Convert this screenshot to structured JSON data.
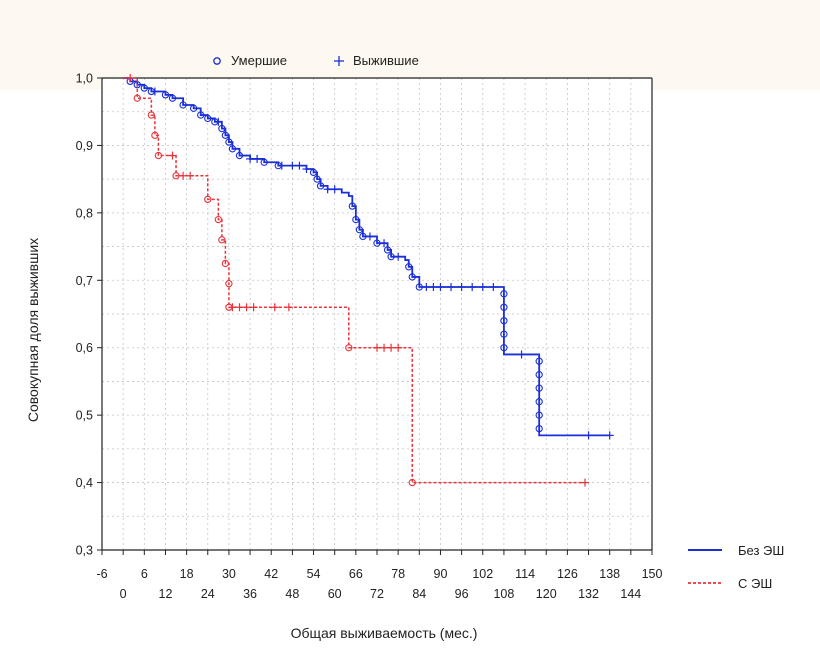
{
  "chart_data": {
    "type": "line",
    "title": "",
    "xlabel": "Общая выживаемость (мес.)",
    "ylabel": "Совокупная доля выживших",
    "xlim": [
      -6,
      150
    ],
    "ylim": [
      0.3,
      1.0
    ],
    "x_ticks_top_row": [
      "-6",
      "6",
      "18",
      "30",
      "42",
      "54",
      "66",
      "78",
      "90",
      "102",
      "114",
      "126",
      "138",
      "150"
    ],
    "x_ticks_bottom_row": [
      "0",
      "12",
      "24",
      "36",
      "48",
      "60",
      "72",
      "84",
      "96",
      "108",
      "120",
      "132",
      "144"
    ],
    "y_ticks": [
      "0,3",
      "0,4",
      "0,5",
      "0,6",
      "0,7",
      "0,8",
      "0,9",
      "1,0"
    ],
    "y_tick_values": [
      0.3,
      0.4,
      0.5,
      0.6,
      0.7,
      0.8,
      0.9,
      1.0
    ],
    "grid": true,
    "marker_legend": {
      "placement": "top",
      "items": [
        {
          "symbol": "circle",
          "label": "Умершие"
        },
        {
          "symbol": "plus",
          "label": "Выжившие"
        }
      ]
    },
    "series_legend": {
      "placement": "bottom-right",
      "items": [
        {
          "label": "Без ЭШ",
          "style": "solid",
          "color": "#1a2fd6"
        },
        {
          "label": "С ЭШ",
          "style": "dashed",
          "color": "#e8333a"
        }
      ]
    },
    "series": [
      {
        "name": "Без ЭШ",
        "color": "#1a2fd6",
        "style": "solid",
        "steps": [
          [
            0,
            1.0
          ],
          [
            2,
            0.995
          ],
          [
            4,
            0.99
          ],
          [
            6,
            0.985
          ],
          [
            8,
            0.98
          ],
          [
            12,
            0.975
          ],
          [
            14,
            0.97
          ],
          [
            17,
            0.96
          ],
          [
            20,
            0.955
          ],
          [
            22,
            0.945
          ],
          [
            24,
            0.94
          ],
          [
            26,
            0.935
          ],
          [
            28,
            0.925
          ],
          [
            29,
            0.915
          ],
          [
            30,
            0.905
          ],
          [
            31,
            0.895
          ],
          [
            33,
            0.885
          ],
          [
            36,
            0.88
          ],
          [
            40,
            0.875
          ],
          [
            44,
            0.87
          ],
          [
            52,
            0.865
          ],
          [
            54,
            0.86
          ],
          [
            55,
            0.85
          ],
          [
            56,
            0.84
          ],
          [
            58,
            0.835
          ],
          [
            62,
            0.83
          ],
          [
            64,
            0.825
          ],
          [
            65,
            0.81
          ],
          [
            66,
            0.79
          ],
          [
            67,
            0.775
          ],
          [
            68,
            0.765
          ],
          [
            72,
            0.755
          ],
          [
            75,
            0.745
          ],
          [
            76,
            0.735
          ],
          [
            80,
            0.73
          ],
          [
            81,
            0.72
          ],
          [
            82,
            0.705
          ],
          [
            84,
            0.69
          ],
          [
            108,
            0.59
          ],
          [
            118,
            0.47
          ],
          [
            138,
            0.47
          ]
        ],
        "deaths": [
          [
            2,
            0.995
          ],
          [
            4,
            0.99
          ],
          [
            6,
            0.985
          ],
          [
            8,
            0.98
          ],
          [
            12,
            0.975
          ],
          [
            14,
            0.97
          ],
          [
            17,
            0.96
          ],
          [
            20,
            0.955
          ],
          [
            22,
            0.945
          ],
          [
            24,
            0.94
          ],
          [
            26,
            0.935
          ],
          [
            28,
            0.925
          ],
          [
            29,
            0.915
          ],
          [
            30,
            0.905
          ],
          [
            31,
            0.895
          ],
          [
            33,
            0.885
          ],
          [
            40,
            0.875
          ],
          [
            44,
            0.87
          ],
          [
            54,
            0.86
          ],
          [
            55,
            0.85
          ],
          [
            56,
            0.84
          ],
          [
            65,
            0.81
          ],
          [
            66,
            0.79
          ],
          [
            67,
            0.775
          ],
          [
            68,
            0.765
          ],
          [
            72,
            0.755
          ],
          [
            75,
            0.745
          ],
          [
            76,
            0.735
          ],
          [
            81,
            0.72
          ],
          [
            82,
            0.705
          ],
          [
            84,
            0.69
          ],
          [
            108,
            0.68
          ],
          [
            108,
            0.66
          ],
          [
            108,
            0.64
          ],
          [
            108,
            0.62
          ],
          [
            108,
            0.6
          ],
          [
            118,
            0.58
          ],
          [
            118,
            0.56
          ],
          [
            118,
            0.54
          ],
          [
            118,
            0.52
          ],
          [
            118,
            0.5
          ],
          [
            118,
            0.48
          ]
        ],
        "censored": [
          [
            9,
            0.98
          ],
          [
            27,
            0.935
          ],
          [
            36,
            0.88
          ],
          [
            38,
            0.88
          ],
          [
            45,
            0.87
          ],
          [
            48,
            0.87
          ],
          [
            50,
            0.87
          ],
          [
            52,
            0.865
          ],
          [
            58,
            0.835
          ],
          [
            60,
            0.835
          ],
          [
            70,
            0.765
          ],
          [
            74,
            0.755
          ],
          [
            78,
            0.735
          ],
          [
            86,
            0.69
          ],
          [
            88,
            0.69
          ],
          [
            90,
            0.69
          ],
          [
            93,
            0.69
          ],
          [
            96,
            0.69
          ],
          [
            99,
            0.69
          ],
          [
            102,
            0.69
          ],
          [
            105,
            0.69
          ],
          [
            113,
            0.59
          ],
          [
            132,
            0.47
          ],
          [
            138,
            0.47
          ]
        ]
      },
      {
        "name": "С ЭШ",
        "color": "#e8333a",
        "style": "dashed",
        "steps": [
          [
            0,
            1.0
          ],
          [
            4,
            0.97
          ],
          [
            8,
            0.945
          ],
          [
            9,
            0.915
          ],
          [
            10,
            0.885
          ],
          [
            15,
            0.855
          ],
          [
            24,
            0.82
          ],
          [
            27,
            0.79
          ],
          [
            28,
            0.76
          ],
          [
            29,
            0.725
          ],
          [
            30,
            0.66
          ],
          [
            64,
            0.6
          ],
          [
            82,
            0.4
          ],
          [
            131,
            0.4
          ]
        ],
        "deaths": [
          [
            4,
            0.97
          ],
          [
            8,
            0.945
          ],
          [
            9,
            0.915
          ],
          [
            10,
            0.885
          ],
          [
            15,
            0.855
          ],
          [
            24,
            0.82
          ],
          [
            27,
            0.79
          ],
          [
            28,
            0.76
          ],
          [
            29,
            0.725
          ],
          [
            30,
            0.695
          ],
          [
            30,
            0.66
          ],
          [
            64,
            0.6
          ],
          [
            82,
            0.4
          ]
        ],
        "censored": [
          [
            2,
            1.0
          ],
          [
            14,
            0.885
          ],
          [
            17,
            0.855
          ],
          [
            19,
            0.855
          ],
          [
            31,
            0.66
          ],
          [
            33,
            0.66
          ],
          [
            35,
            0.66
          ],
          [
            37,
            0.66
          ],
          [
            43,
            0.66
          ],
          [
            47,
            0.66
          ],
          [
            72,
            0.6
          ],
          [
            74,
            0.6
          ],
          [
            76,
            0.6
          ],
          [
            78,
            0.6
          ],
          [
            131,
            0.4
          ]
        ]
      }
    ]
  }
}
